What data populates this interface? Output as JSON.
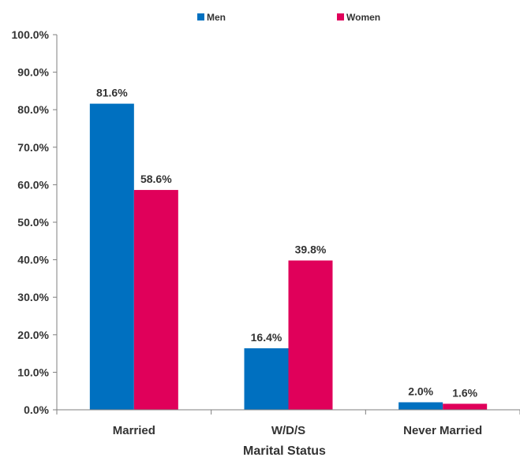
{
  "chart_data": {
    "type": "bar",
    "categories": [
      "Married",
      "W/D/S",
      "Never Married"
    ],
    "series": [
      {
        "name": "Men",
        "color": "#0070c0",
        "values": [
          81.6,
          16.4,
          2.0
        ],
        "labels": [
          "81.6%",
          "16.4%",
          "2.0%"
        ]
      },
      {
        "name": "Women",
        "color": "#e0005a",
        "values": [
          58.6,
          39.8,
          1.6
        ],
        "labels": [
          "58.6%",
          "39.8%",
          "1.6%"
        ]
      }
    ],
    "xlabel": "Marital Status",
    "ylabel": "",
    "ylim": [
      0,
      100
    ],
    "yticks": [
      0,
      10,
      20,
      30,
      40,
      50,
      60,
      70,
      80,
      90,
      100
    ],
    "ytick_labels": [
      "0.0%",
      "10.0%",
      "20.0%",
      "30.0%",
      "40.0%",
      "50.0%",
      "60.0%",
      "70.0%",
      "80.0%",
      "90.0%",
      "100.0%"
    ],
    "grid": false,
    "legend_position": "top"
  }
}
